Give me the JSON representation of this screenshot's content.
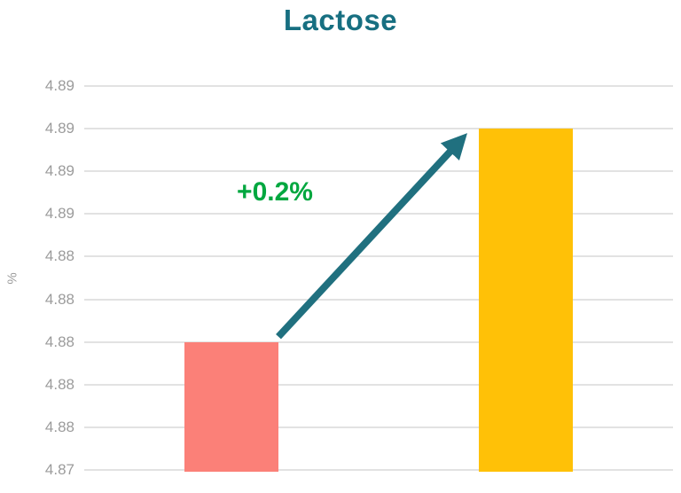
{
  "chart_data": {
    "type": "bar",
    "title": "Lactose",
    "xlabel": "",
    "ylabel": "%",
    "values": [
      4.88,
      4.89
    ],
    "bar_colors": [
      "#fb8078",
      "#ffc107"
    ],
    "ylim": [
      4.874,
      4.892
    ],
    "ytick_step": 0.002,
    "ytick_labels_top_to_bottom": [
      "4.89",
      "4.89",
      "4.89",
      "4.89",
      "4.88",
      "4.88",
      "4.88",
      "4.88",
      "4.88",
      "4.87"
    ],
    "grid": true,
    "legend": "none",
    "annotation": {
      "text": "+0.2%",
      "text_color": "#00a73f",
      "arrow_color": "#20707f"
    },
    "colors": {
      "title": "#176f81",
      "tick_text": "#9b9b9b",
      "gridline": "#e2e2e2",
      "background": "#ffffff"
    }
  }
}
